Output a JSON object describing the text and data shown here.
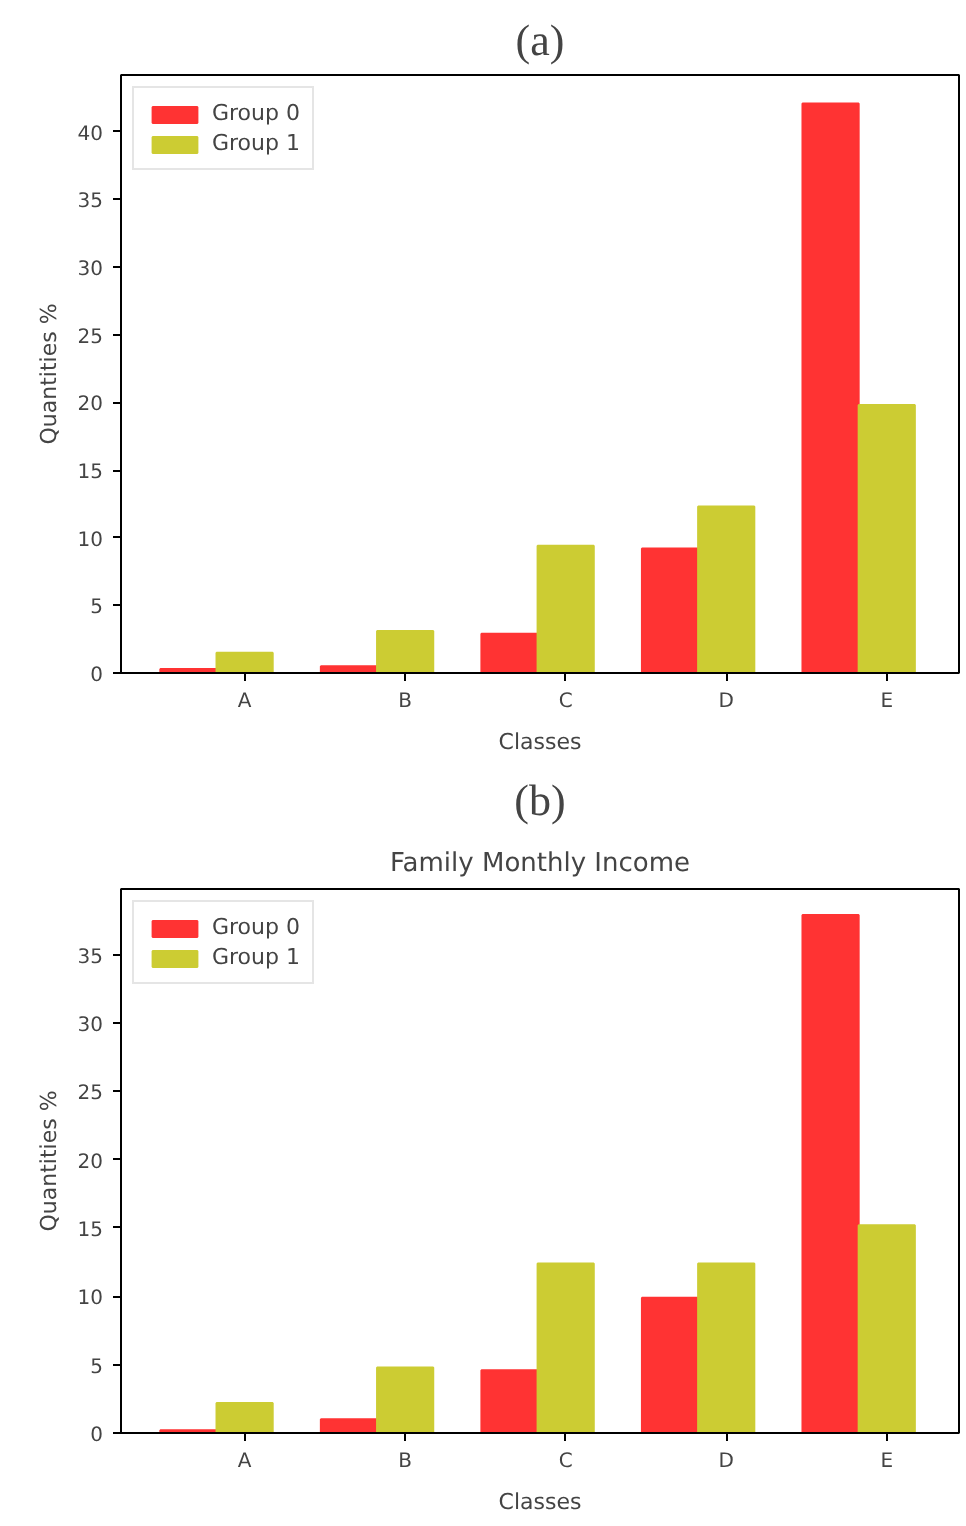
{
  "chart_data": [
    {
      "type": "bar",
      "title": "(a)",
      "xlabel": "Classes",
      "ylabel": "Quantities %",
      "categories": [
        "A",
        "B",
        "C",
        "D",
        "E"
      ],
      "series": [
        {
          "name": "Group 0",
          "color": "#ff3333",
          "values": [
            0.3,
            0.5,
            2.9,
            9.2,
            42.1
          ]
        },
        {
          "name": "Group 1",
          "color": "#cccc33",
          "values": [
            1.5,
            3.1,
            9.4,
            12.3,
            19.8
          ]
        }
      ],
      "ylim": [
        0,
        44.2
      ],
      "yticks": [
        0,
        5,
        10,
        15,
        20,
        25,
        30,
        35,
        40
      ],
      "grid": false,
      "legend": "top left"
    },
    {
      "type": "bar",
      "title": "(b)",
      "subtitle": "Family Monthly Income",
      "xlabel": "Classes",
      "ylabel": "Quantities %",
      "categories": [
        "A",
        "B",
        "C",
        "D",
        "E"
      ],
      "series": [
        {
          "name": "Group 0",
          "color": "#ff3333",
          "values": [
            0.2,
            1.0,
            4.6,
            9.9,
            37.9
          ]
        },
        {
          "name": "Group 1",
          "color": "#cccc33",
          "values": [
            2.2,
            4.8,
            12.4,
            12.4,
            15.2
          ]
        }
      ],
      "ylim": [
        0,
        39.8
      ],
      "yticks": [
        0,
        5,
        10,
        15,
        20,
        25,
        30,
        35
      ],
      "grid": false,
      "legend": "top left"
    }
  ]
}
